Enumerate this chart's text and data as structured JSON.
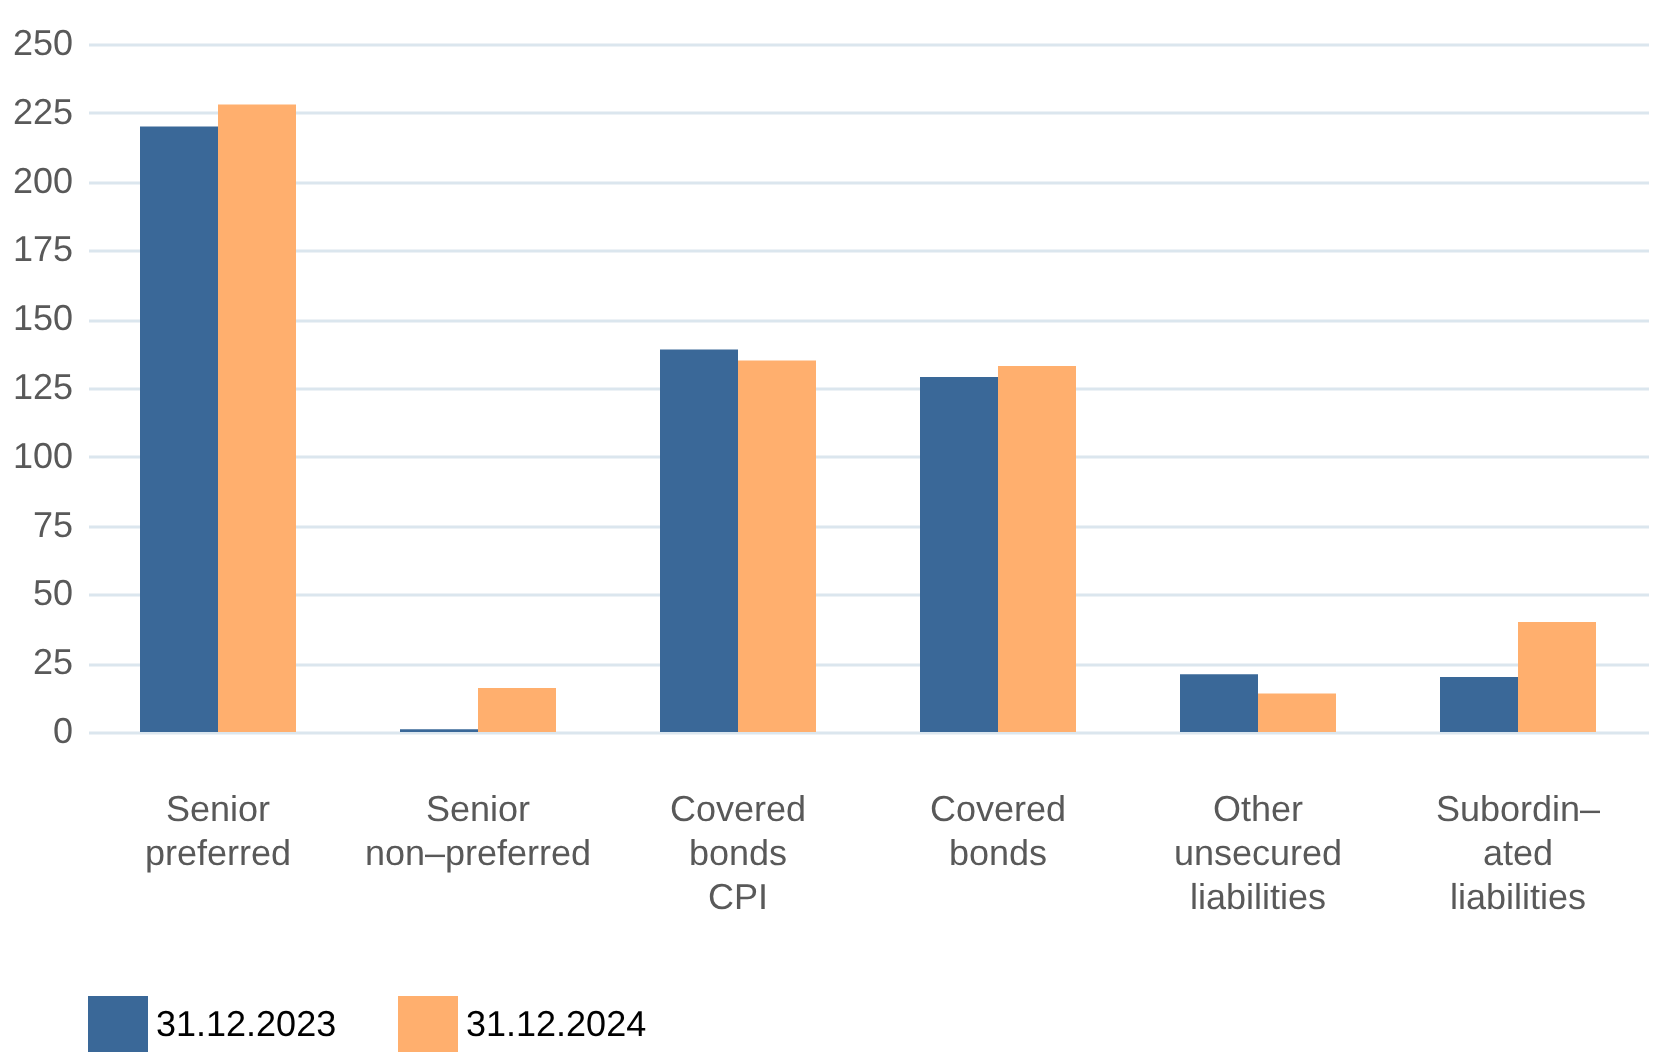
{
  "chart_data": {
    "type": "bar",
    "categories": [
      "Senior\npreferred",
      "Senior\nnon–preferred",
      "Covered\nbonds\nCPI",
      "Covered\nbonds",
      "Other\nunsecured\nliabilities",
      "Subordin–\nated\nliabilities"
    ],
    "series": [
      {
        "name": "31.12.2023",
        "color": "#3a6898",
        "values": [
          220,
          1,
          139,
          129,
          21,
          20
        ]
      },
      {
        "name": "31.12.2024",
        "color": "#ffaf6e",
        "values": [
          228,
          16,
          135,
          133,
          14,
          40
        ]
      }
    ],
    "ylim": [
      0,
      250
    ],
    "yticks": [
      0,
      25,
      50,
      75,
      100,
      125,
      150,
      175,
      200,
      225,
      250
    ],
    "grid": "y",
    "legend": "bottom"
  }
}
